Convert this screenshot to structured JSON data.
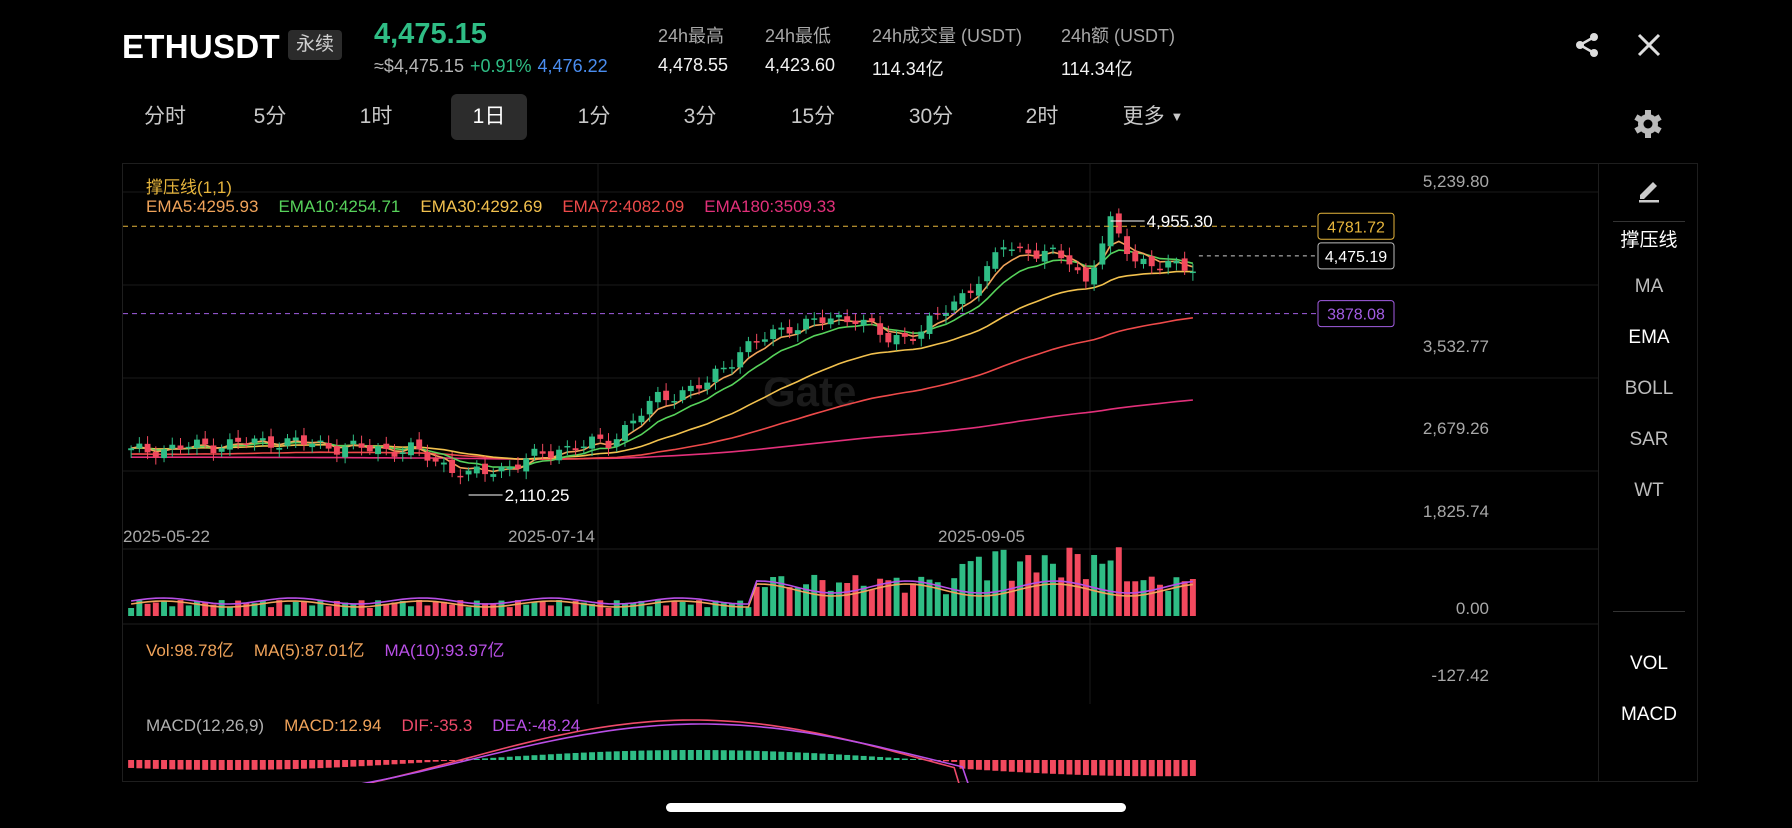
{
  "header": {
    "symbol": "ETHUSDT",
    "contract_type": "永续",
    "last_price": "4,475.15",
    "approx_usd": "≈$4,475.15",
    "change_pct": "+0.91%",
    "mark_price": "4,476.22",
    "stats": [
      {
        "label": "24h最高",
        "value": "4,478.55"
      },
      {
        "label": "24h最低",
        "value": "4,423.60"
      },
      {
        "label": "24h成交量 (USDT)",
        "value": "114.34亿"
      },
      {
        "label": "24h额 (USDT)",
        "value": "114.34亿"
      }
    ],
    "icons": {
      "share": "share-icon",
      "close": "close-icon",
      "settings": "gear-icon",
      "draw": "pencil-icon"
    }
  },
  "intervals": {
    "tabs": [
      "分时",
      "5分",
      "1时",
      "1日",
      "1分",
      "3分",
      "15分",
      "30分",
      "2时"
    ],
    "active": "1日",
    "more": "更多"
  },
  "side_menu": {
    "top": [
      "撑压线",
      "MA",
      "EMA",
      "BOLL",
      "SAR",
      "WT"
    ],
    "active_top": [
      "撑压线",
      "EMA"
    ],
    "bottom": [
      "VOL",
      "MACD"
    ]
  },
  "chart_data": {
    "type": "candlestick",
    "main": {
      "support_label": "撑压线(1,1)",
      "indicators": [
        {
          "label": "EMA5:4295.93",
          "color": "#f0a35a"
        },
        {
          "label": "EMA10:4254.71",
          "color": "#57d35b"
        },
        {
          "label": "EMA30:4292.69",
          "color": "#f2c14e"
        },
        {
          "label": "EMA72:4082.09",
          "color": "#ee4a4a"
        },
        {
          "label": "EMA180:3509.33",
          "color": "#e2307a"
        }
      ],
      "y_ticks": [
        "5,239.80",
        "3,532.77",
        "2,679.26",
        "1,825.74"
      ],
      "x_ticks": [
        "2025-05-22",
        "2025-07-14",
        "2025-09-05"
      ],
      "ylim": [
        1825.74,
        5239.8
      ],
      "high_marker": "4,955.30",
      "low_marker": "2,110.25",
      "resistance": {
        "label": "4781.72",
        "value": 4781.72,
        "color": "#e6b53c"
      },
      "support": {
        "label": "3878.08",
        "value": 3878.08,
        "color": "#a35de3"
      },
      "last": {
        "label": "4,475.19",
        "value": 4475.19
      },
      "up_color": "#2fbd85",
      "down_color": "#f2495e"
    },
    "volume": {
      "legend": [
        {
          "label": "Vol:98.78亿",
          "color": "#f0a35a"
        },
        {
          "label": "MA(5):87.01亿",
          "color": "#f0a35a"
        },
        {
          "label": "MA(10):93.97亿",
          "color": "#b84fe6"
        }
      ],
      "y_tick": "0.00"
    },
    "macd": {
      "legend": [
        {
          "label": "MACD(12,26,9)",
          "color": "#b0b0b0"
        },
        {
          "label": "MACD:12.94",
          "color": "#f0a35a"
        },
        {
          "label": "DIF:-35.3",
          "color": "#ee4a6a"
        },
        {
          "label": "DEA:-48.24",
          "color": "#b84fe6"
        }
      ],
      "y_tick": "-127.42"
    }
  }
}
